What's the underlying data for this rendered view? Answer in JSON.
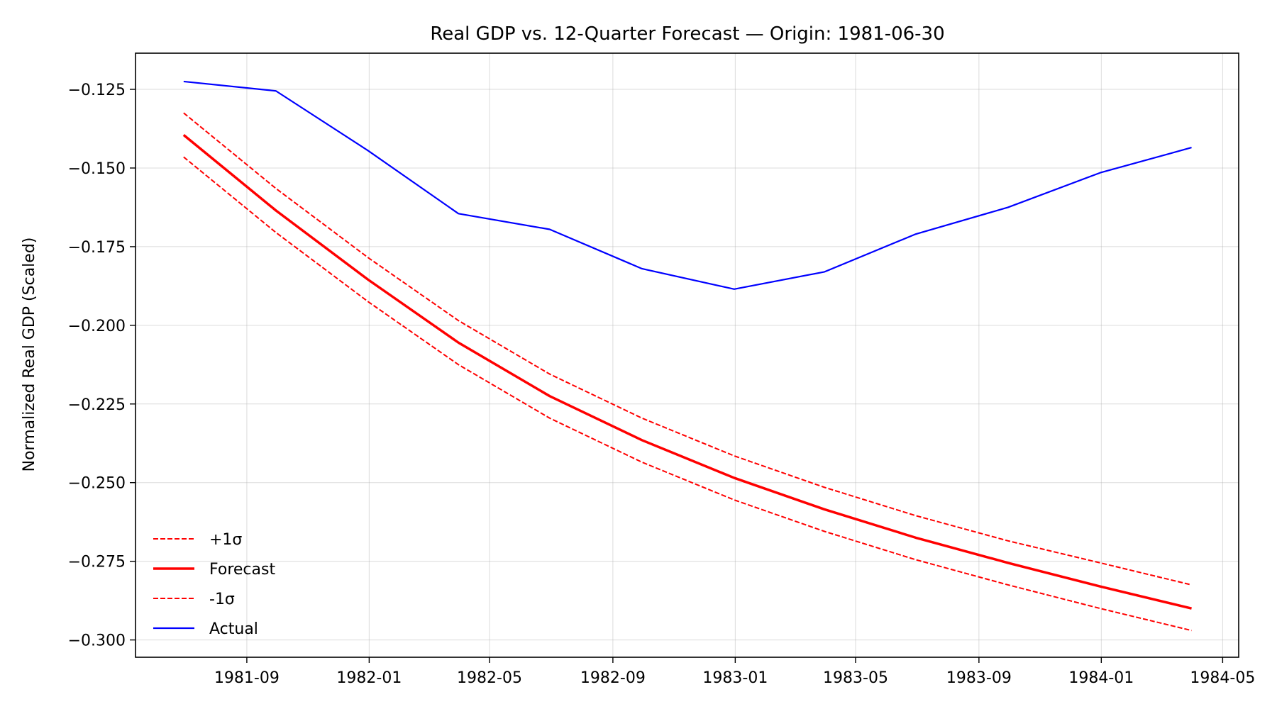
{
  "chart_data": {
    "type": "line",
    "title": "Real GDP vs. 12-Quarter Forecast — Origin: 1981-06-30",
    "xlabel": "",
    "ylabel": "Normalized Real GDP (Scaled)",
    "x": [
      "1981-06-30",
      "1981-09-30",
      "1981-12-31",
      "1982-03-31",
      "1982-06-30",
      "1982-09-30",
      "1982-12-31",
      "1983-03-31",
      "1983-06-30",
      "1983-09-30",
      "1983-12-31",
      "1984-03-31"
    ],
    "xlim": [
      "1981-05-13",
      "1984-05-17"
    ],
    "ylim": [
      -0.3055,
      -0.1135
    ],
    "x_ticks": [
      "1981-09",
      "1982-01",
      "1982-05",
      "1982-09",
      "1983-01",
      "1983-05",
      "1983-09",
      "1984-01",
      "1984-05"
    ],
    "y_ticks": [
      -0.125,
      -0.15,
      -0.175,
      -0.2,
      -0.225,
      -0.25,
      -0.275,
      -0.3
    ],
    "y_tick_labels": [
      "−0.125",
      "−0.150",
      "−0.175",
      "−0.200",
      "−0.225",
      "−0.250",
      "−0.275",
      "−0.300"
    ],
    "grid": true,
    "legend_position": "lower-left",
    "series": [
      {
        "name": "+1σ",
        "color": "#ff0000",
        "dash": "dashed",
        "values": [
          -0.1325,
          -0.1565,
          -0.1785,
          -0.1985,
          -0.2155,
          -0.2295,
          -0.2415,
          -0.2515,
          -0.2605,
          -0.2685,
          -0.2755,
          -0.2825
        ]
      },
      {
        "name": "Forecast",
        "color": "#ff0000",
        "dash": "solid",
        "bold": true,
        "values": [
          -0.1395,
          -0.1635,
          -0.1855,
          -0.2055,
          -0.2225,
          -0.2365,
          -0.2485,
          -0.2585,
          -0.2675,
          -0.2755,
          -0.283,
          -0.29
        ]
      },
      {
        "name": "-1σ",
        "color": "#ff0000",
        "dash": "dashed",
        "values": [
          -0.1465,
          -0.1705,
          -0.1925,
          -0.2125,
          -0.2295,
          -0.2435,
          -0.2555,
          -0.2655,
          -0.2745,
          -0.2825,
          -0.29,
          -0.297
        ]
      },
      {
        "name": "Actual",
        "color": "#0000ff",
        "dash": "solid",
        "values": [
          -0.1225,
          -0.1255,
          -0.1445,
          -0.1645,
          -0.1695,
          -0.182,
          -0.1885,
          -0.183,
          -0.171,
          -0.1625,
          -0.1515,
          -0.1435
        ]
      }
    ]
  }
}
